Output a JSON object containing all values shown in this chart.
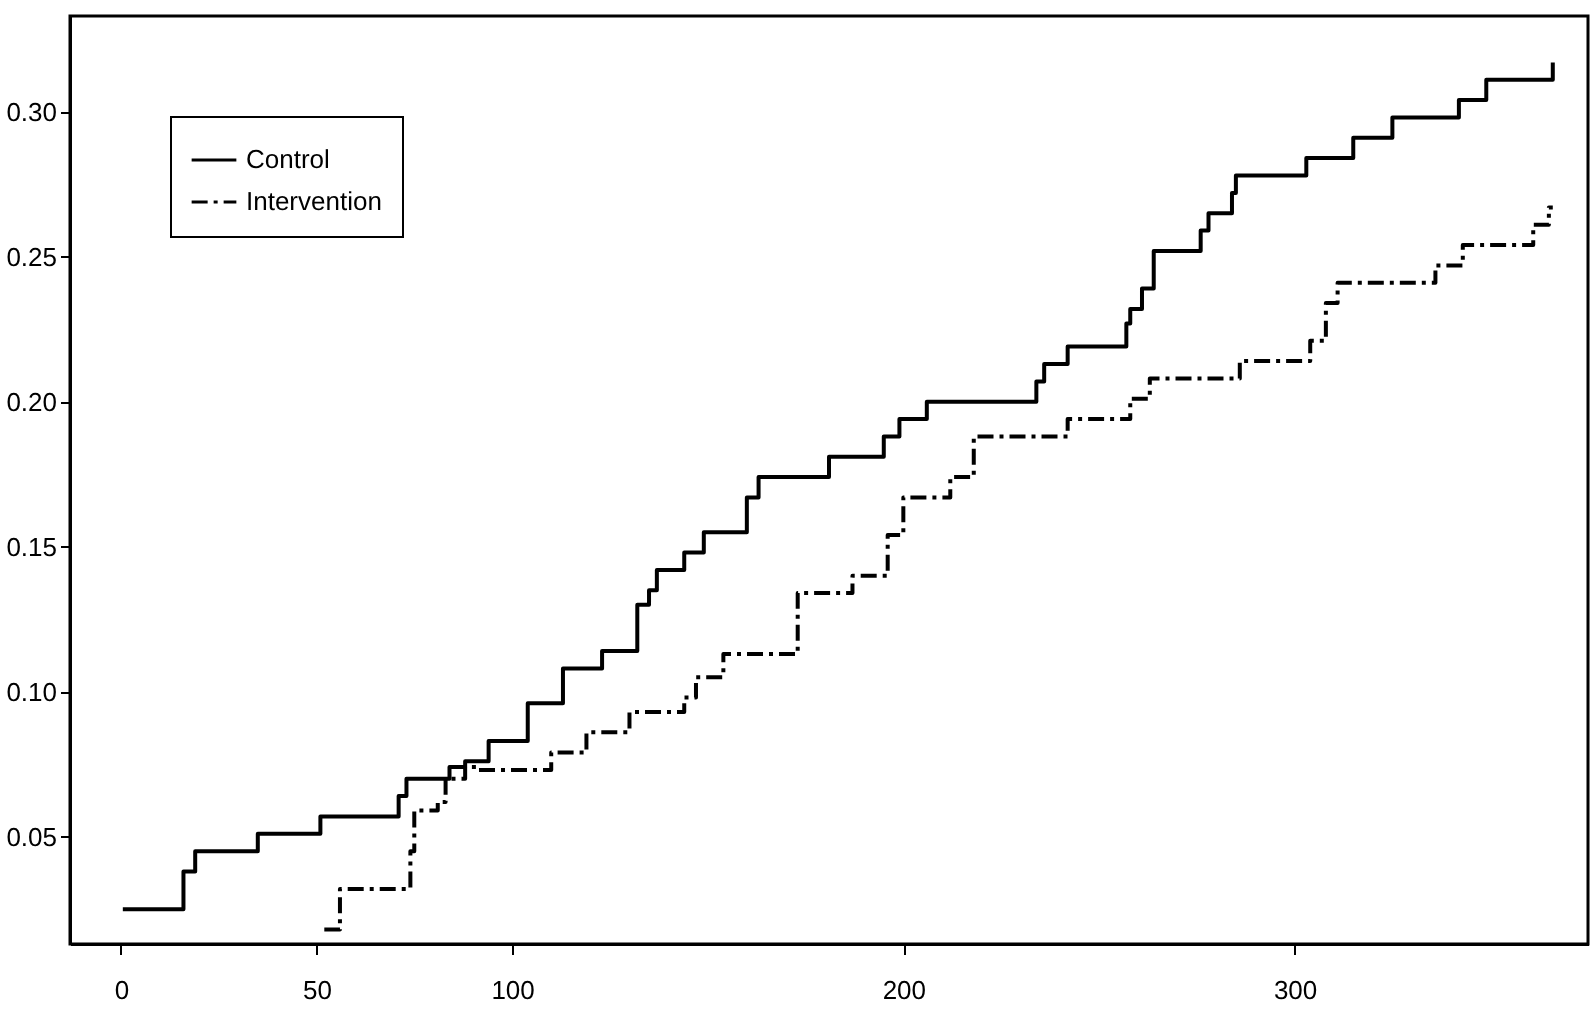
{
  "chart_data": {
    "type": "step",
    "xlim": [
      -13,
      375
    ],
    "ylim": [
      0.013,
      0.333
    ],
    "xticks": [
      0,
      50,
      100,
      200,
      300
    ],
    "yticks": [
      {
        "value": 0.05,
        "label": "0.05"
      },
      {
        "value": 0.1,
        "label": "0.10"
      },
      {
        "value": 0.15,
        "label": "0.15"
      },
      {
        "value": 0.2,
        "label": "0.20"
      },
      {
        "value": 0.25,
        "label": "0.25"
      },
      {
        "value": 0.3,
        "label": "0.30"
      }
    ],
    "grid": false,
    "legend": "top left",
    "series": [
      {
        "name": "Control",
        "color": "#000000",
        "line_style": "solid",
        "x": [
          0.5,
          16,
          19,
          35,
          51,
          71,
          73,
          84,
          88,
          94,
          104,
          113,
          123,
          132,
          135,
          137,
          144,
          149,
          160,
          163,
          181,
          195,
          199,
          206,
          234,
          236,
          242,
          257,
          258,
          261,
          264,
          276,
          278,
          284,
          285,
          303,
          315,
          325,
          342,
          349,
          366
        ],
        "values": [
          0.025,
          0.038,
          0.045,
          0.051,
          0.057,
          0.064,
          0.07,
          0.074,
          0.076,
          0.083,
          0.096,
          0.108,
          0.114,
          0.13,
          0.135,
          0.142,
          0.148,
          0.155,
          0.167,
          0.174,
          0.181,
          0.188,
          0.194,
          0.2,
          0.207,
          0.213,
          0.219,
          0.227,
          0.232,
          0.239,
          0.252,
          0.259,
          0.265,
          0.272,
          0.278,
          0.284,
          0.291,
          0.298,
          0.304,
          0.311,
          0.317
        ]
      },
      {
        "name": "Intervention",
        "color": "#000000",
        "line_style": "dashed",
        "x": [
          52,
          56,
          74,
          75,
          81,
          83,
          88,
          91,
          110,
          119,
          130,
          144,
          147,
          154,
          173,
          187,
          196,
          200,
          212,
          218,
          242,
          258,
          263,
          286,
          304,
          308,
          311,
          336,
          343,
          361,
          365,
          366
        ],
        "values": [
          0.018,
          0.032,
          0.045,
          0.059,
          0.062,
          0.07,
          0.074,
          0.073,
          0.079,
          0.086,
          0.093,
          0.098,
          0.105,
          0.113,
          0.134,
          0.14,
          0.154,
          0.167,
          0.174,
          0.188,
          0.194,
          0.201,
          0.208,
          0.214,
          0.221,
          0.234,
          0.241,
          0.247,
          0.254,
          0.261,
          0.267,
          0.267
        ]
      }
    ]
  }
}
